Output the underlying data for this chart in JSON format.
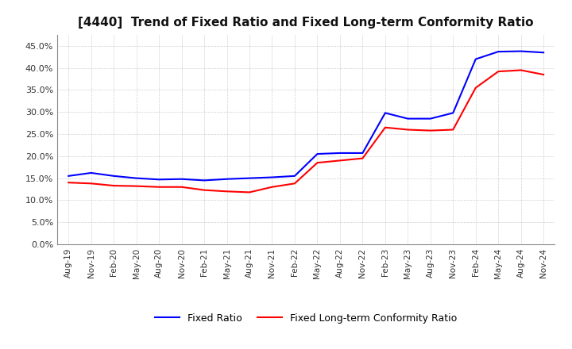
{
  "title": "[4440]  Trend of Fixed Ratio and Fixed Long-term Conformity Ratio",
  "ylim": [
    0.0,
    0.475
  ],
  "yticks": [
    0.0,
    0.05,
    0.1,
    0.15,
    0.2,
    0.25,
    0.3,
    0.35,
    0.4,
    0.45
  ],
  "line1_color": "#0000FF",
  "line1_label": "Fixed Ratio",
  "line2_color": "#FF0000",
  "line2_label": "Fixed Long-term Conformity Ratio",
  "plot_bg_color": "#FFFFFF",
  "fig_bg_color": "#FFFFFF",
  "grid_color": "#AAAAAA",
  "x_labels": [
    "Aug-19",
    "Nov-19",
    "Feb-20",
    "May-20",
    "Aug-20",
    "Nov-20",
    "Feb-21",
    "May-21",
    "Aug-21",
    "Nov-21",
    "Feb-22",
    "May-22",
    "Aug-22",
    "Nov-22",
    "Feb-23",
    "May-23",
    "Aug-23",
    "Nov-23",
    "Feb-24",
    "May-24",
    "Aug-24",
    "Nov-24"
  ],
  "line1_values": [
    0.155,
    0.162,
    0.155,
    0.15,
    0.147,
    0.148,
    0.145,
    0.148,
    0.15,
    0.152,
    0.155,
    0.205,
    0.207,
    0.207,
    0.298,
    0.285,
    0.285,
    0.298,
    0.42,
    0.437,
    0.438,
    0.435
  ],
  "line2_values": [
    0.14,
    0.138,
    0.133,
    0.132,
    0.13,
    0.13,
    0.123,
    0.12,
    0.118,
    0.13,
    0.138,
    0.185,
    0.19,
    0.195,
    0.265,
    0.26,
    0.258,
    0.26,
    0.355,
    0.392,
    0.395,
    0.385
  ]
}
